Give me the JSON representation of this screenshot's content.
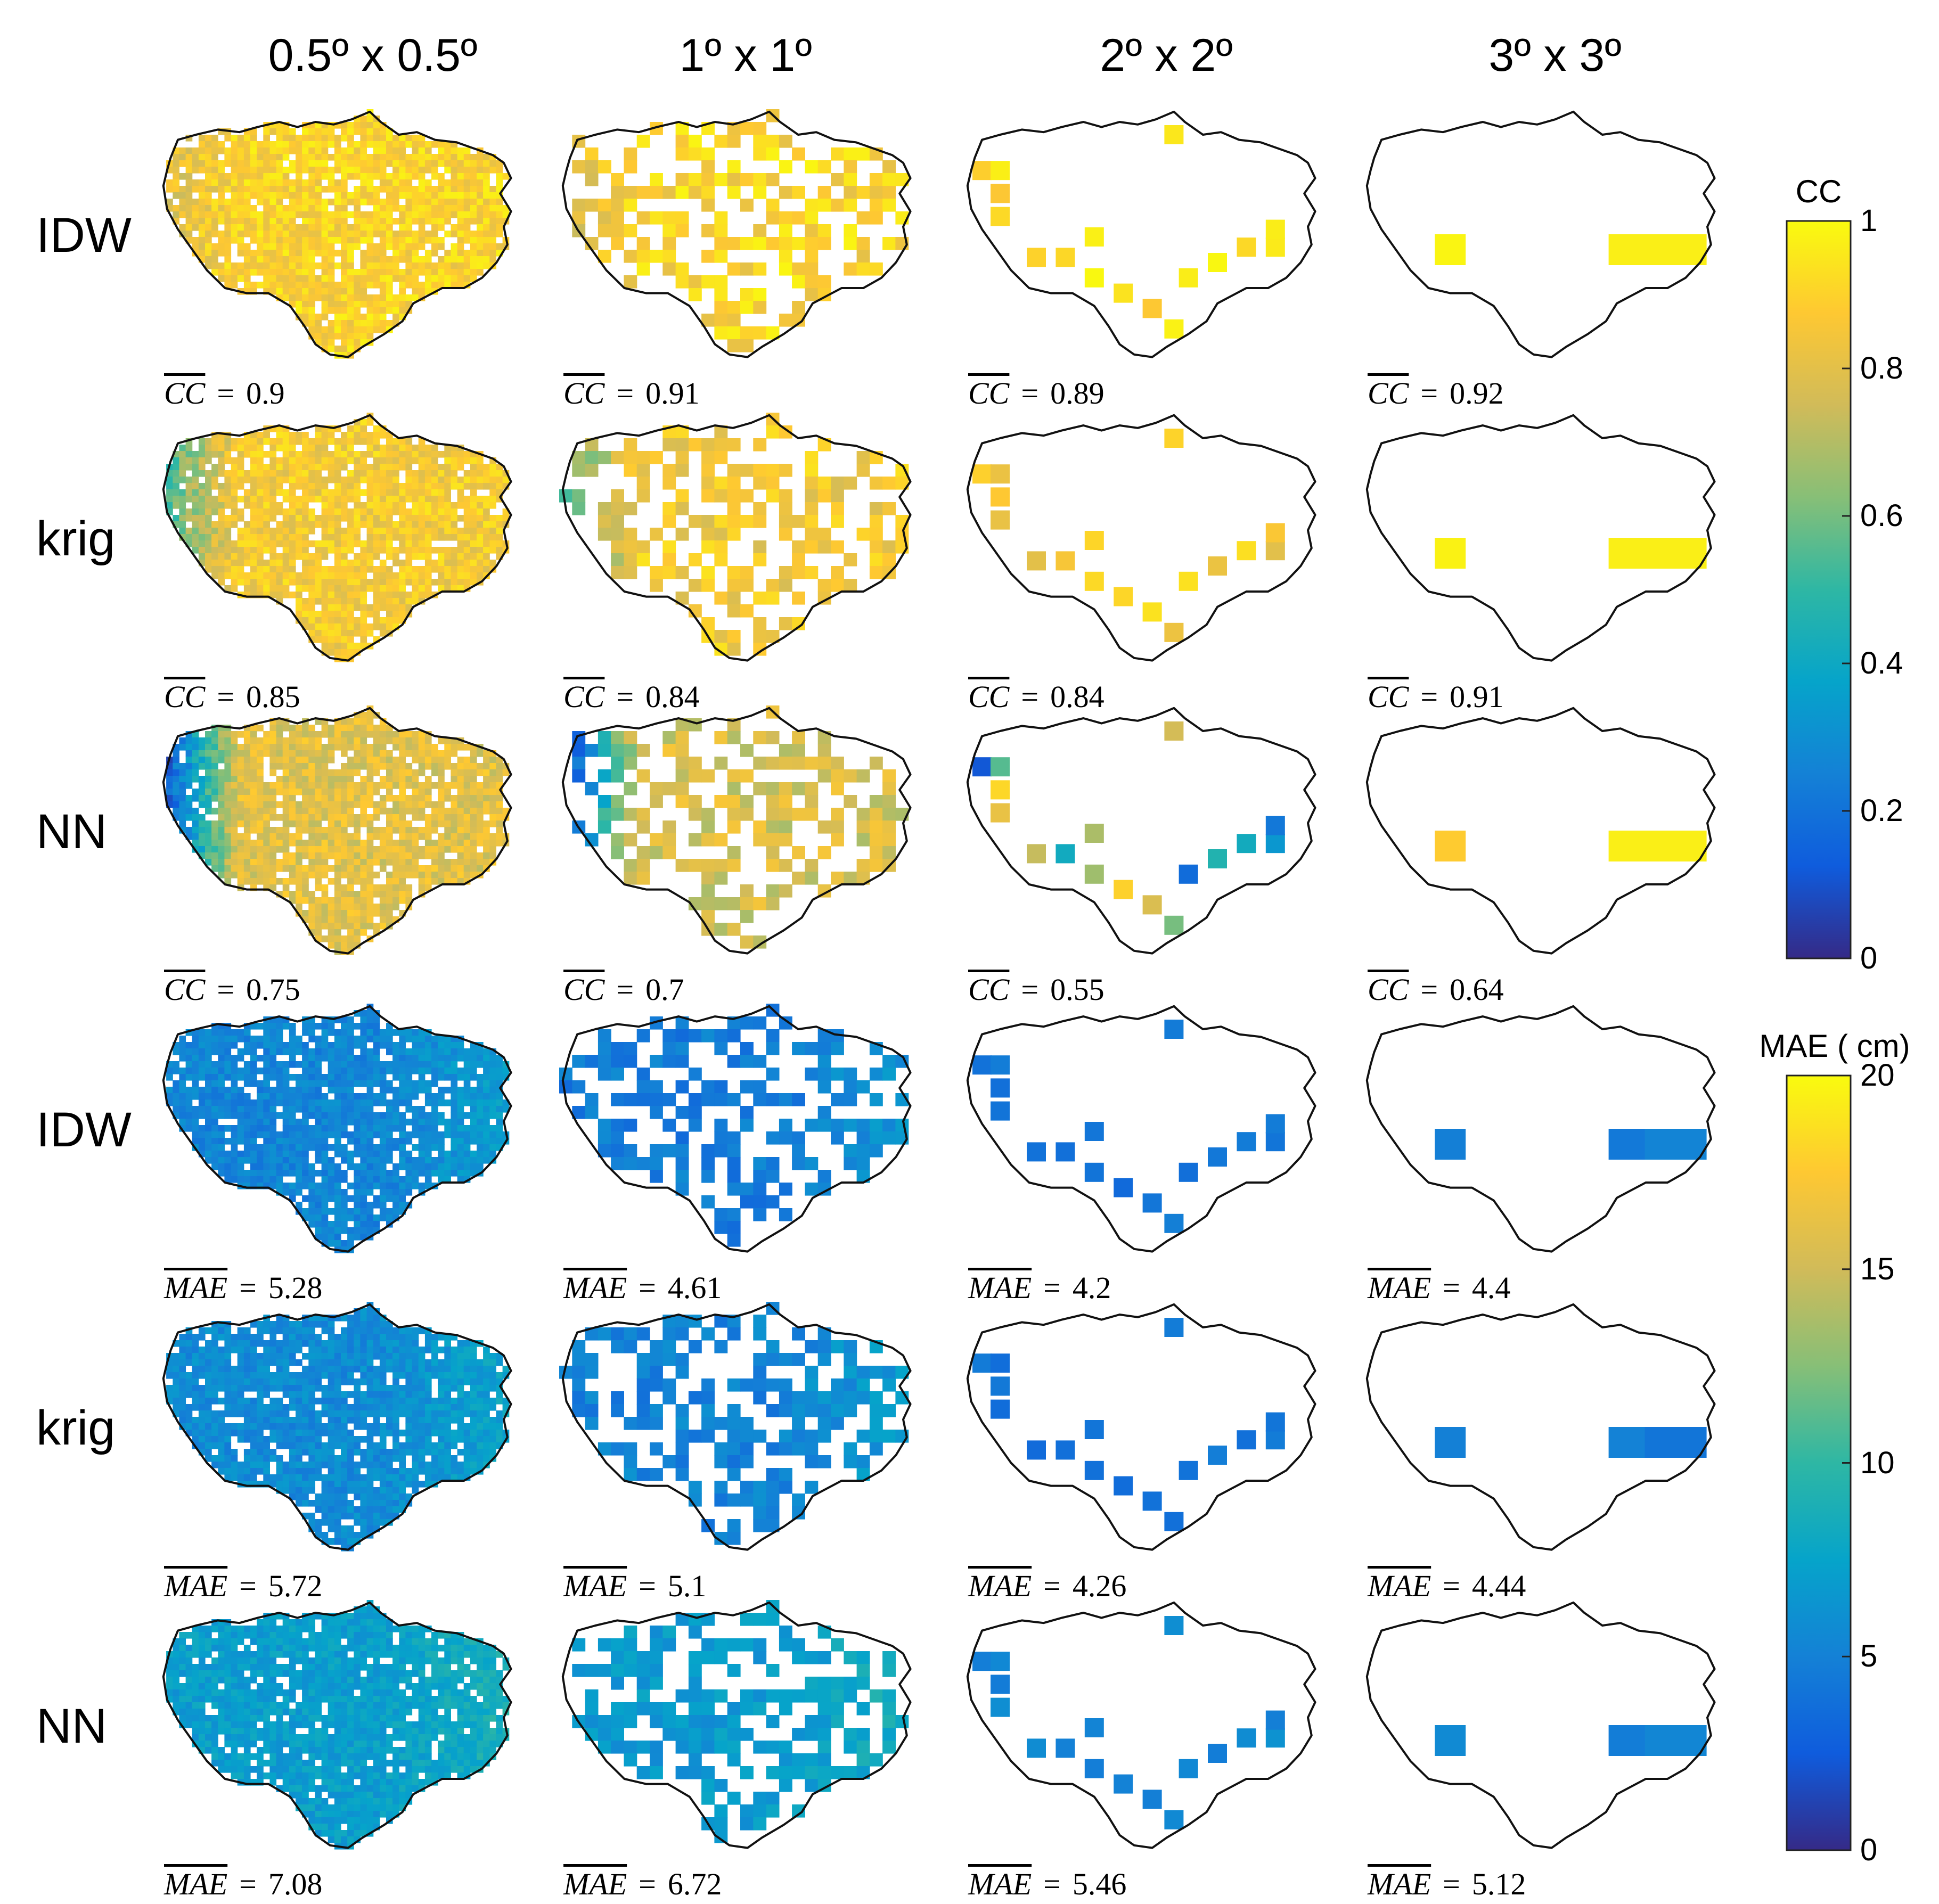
{
  "chart_data": {
    "type": "heatmap",
    "description_title": "",
    "column_headers": [
      "0.5º x 0.5º",
      "1º x 1º",
      "2º x 2º",
      "3º x 3º"
    ],
    "row_labels": [
      "IDW",
      "krig",
      "NN",
      "IDW",
      "krig",
      "NN"
    ],
    "metric_names": [
      "CC",
      "CC",
      "CC",
      "MAE",
      "MAE",
      "MAE"
    ],
    "values": [
      [
        0.9,
        0.91,
        0.89,
        0.92
      ],
      [
        0.85,
        0.84,
        0.84,
        0.91
      ],
      [
        0.75,
        0.7,
        0.55,
        0.64
      ],
      [
        5.28,
        4.61,
        4.2,
        4.4
      ],
      [
        5.72,
        5.1,
        4.26,
        4.44
      ],
      [
        7.08,
        6.72,
        5.46,
        5.12
      ]
    ],
    "colorbars": [
      {
        "title": "CC",
        "range": [
          0,
          1
        ],
        "ticks": [
          "0",
          "0.2",
          "0.4",
          "0.6",
          "0.8",
          "1"
        ],
        "colormap": "parula"
      },
      {
        "title": "MAE ( cm)",
        "range": [
          0,
          20
        ],
        "ticks": [
          "0",
          "5",
          "10",
          "15",
          "20"
        ],
        "colormap": "parula"
      }
    ]
  },
  "colors": {
    "parula": [
      "#352a87",
      "#0f5cdd",
      "#1481d6",
      "#06a4ca",
      "#2eb7a4",
      "#87bf77",
      "#d1bb59",
      "#fec832",
      "#f9fb0e"
    ],
    "outline": "#111111"
  },
  "display": {
    "stat_labels": [
      [
        "0.9",
        "0.91",
        "0.89",
        "0.92"
      ],
      [
        "0.85",
        "0.84",
        "0.84",
        "0.91"
      ],
      [
        "0.75",
        "0.7",
        "0.55",
        "0.64"
      ],
      [
        "5.28",
        "4.61",
        "4.2",
        "4.4"
      ],
      [
        "5.72",
        "5.1",
        "4.26",
        "4.44"
      ],
      [
        "7.08",
        "6.72",
        "5.46",
        "5.12"
      ]
    ]
  }
}
